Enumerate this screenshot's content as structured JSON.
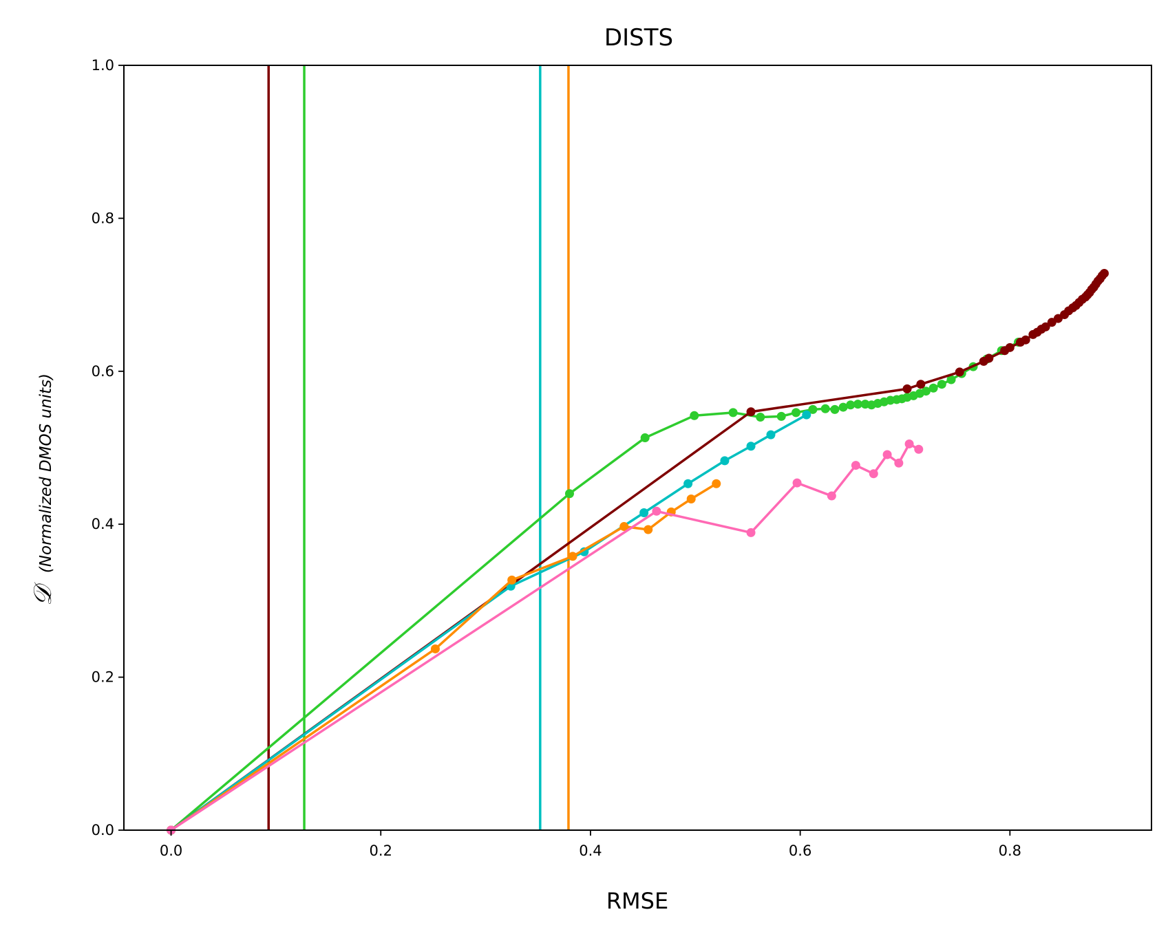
{
  "chart_data": {
    "type": "line",
    "title": "DISTS",
    "xlabel": "RMSE",
    "ylabel_symbol": "𝒟",
    "ylabel_note": "(Normalized DMOS units)",
    "xlim": [
      -0.045,
      0.935
    ],
    "ylim": [
      0.0,
      1.0
    ],
    "xticks": [
      0.0,
      0.2,
      0.4,
      0.6,
      0.8
    ],
    "xtick_labels": [
      "0.0",
      "0.2",
      "0.4",
      "0.6",
      "0.8"
    ],
    "yticks": [
      0.0,
      0.2,
      0.4,
      0.6,
      0.8,
      1.0
    ],
    "ytick_labels": [
      "0.0",
      "0.2",
      "0.4",
      "0.6",
      "0.8",
      "1.0"
    ],
    "grid": false,
    "series": [
      {
        "color": "#2ecc2e",
        "vline": 0.127,
        "x": [
          0.0,
          0.38,
          0.452,
          0.499,
          0.536,
          0.562,
          0.582,
          0.596,
          0.612,
          0.624,
          0.633,
          0.641,
          0.648,
          0.655,
          0.662,
          0.668,
          0.674,
          0.68,
          0.686,
          0.692,
          0.697,
          0.702,
          0.708,
          0.714,
          0.72,
          0.727,
          0.735,
          0.744,
          0.754,
          0.765,
          0.778,
          0.792,
          0.808
        ],
        "y": [
          0.0,
          0.44,
          0.513,
          0.542,
          0.546,
          0.54,
          0.541,
          0.546,
          0.55,
          0.551,
          0.55,
          0.553,
          0.556,
          0.557,
          0.557,
          0.556,
          0.558,
          0.56,
          0.562,
          0.563,
          0.564,
          0.566,
          0.568,
          0.571,
          0.574,
          0.578,
          0.583,
          0.589,
          0.597,
          0.606,
          0.616,
          0.627,
          0.638
        ]
      },
      {
        "color": "#7f0000",
        "vline": 0.093,
        "x": [
          0.0,
          0.553,
          0.702,
          0.715,
          0.752,
          0.775,
          0.78,
          0.795,
          0.8,
          0.81,
          0.815,
          0.822,
          0.826,
          0.83,
          0.834,
          0.84,
          0.846,
          0.852,
          0.856,
          0.86,
          0.863,
          0.866,
          0.869,
          0.872,
          0.874,
          0.876,
          0.878,
          0.88,
          0.882,
          0.884,
          0.886,
          0.888,
          0.89
        ],
        "y": [
          0.0,
          0.547,
          0.577,
          0.583,
          0.599,
          0.613,
          0.617,
          0.627,
          0.631,
          0.638,
          0.641,
          0.648,
          0.651,
          0.655,
          0.658,
          0.664,
          0.669,
          0.674,
          0.679,
          0.683,
          0.686,
          0.69,
          0.694,
          0.697,
          0.7,
          0.703,
          0.707,
          0.71,
          0.714,
          0.718,
          0.721,
          0.725,
          0.728
        ]
      },
      {
        "color": "#00bfbf",
        "vline": 0.352,
        "x": [
          0.0,
          0.324,
          0.394,
          0.451,
          0.493,
          0.528,
          0.553,
          0.572,
          0.606
        ],
        "y": [
          0.0,
          0.319,
          0.364,
          0.415,
          0.453,
          0.483,
          0.502,
          0.517,
          0.543
        ]
      },
      {
        "color": "#ff8c00",
        "vline": 0.379,
        "x": [
          0.0,
          0.252,
          0.325,
          0.383,
          0.432,
          0.455,
          0.477,
          0.496,
          0.52
        ],
        "y": [
          0.0,
          0.237,
          0.327,
          0.358,
          0.397,
          0.393,
          0.416,
          0.433,
          0.453
        ]
      },
      {
        "color": "#ff69b4",
        "x": [
          0.0,
          0.463,
          0.553,
          0.597,
          0.63,
          0.653,
          0.67,
          0.683,
          0.694,
          0.704,
          0.713
        ],
        "y": [
          0.0,
          0.417,
          0.389,
          0.454,
          0.437,
          0.477,
          0.466,
          0.491,
          0.48,
          0.505,
          0.498
        ]
      }
    ]
  }
}
